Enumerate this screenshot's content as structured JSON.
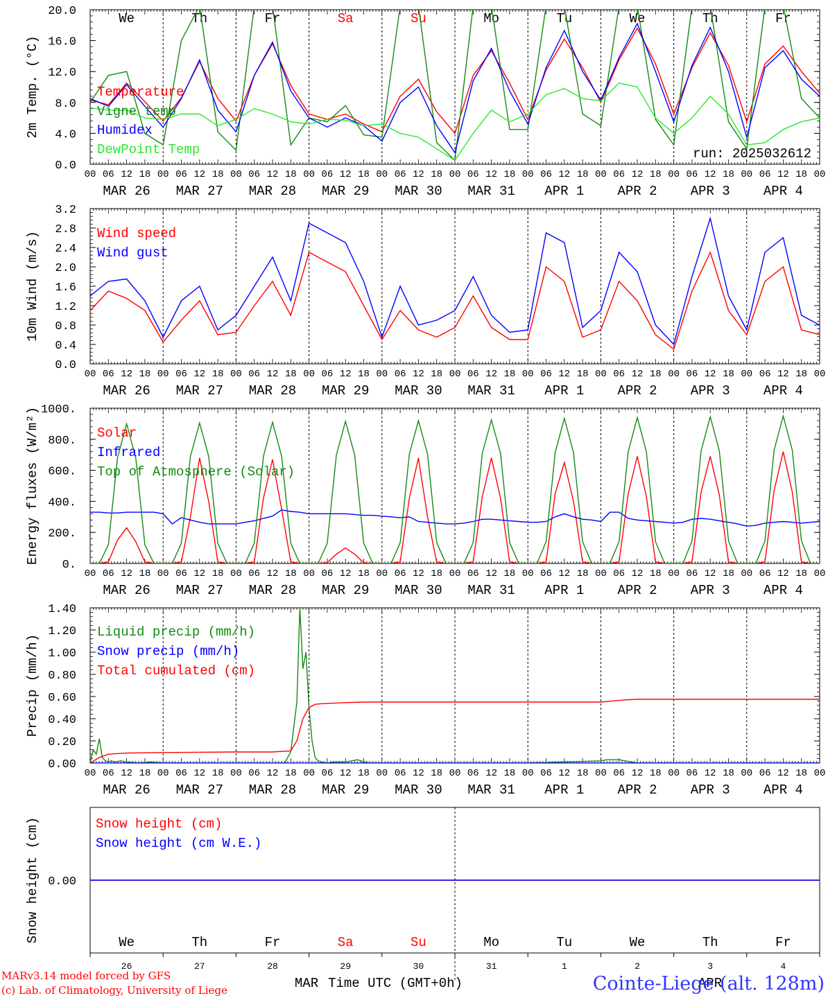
{
  "days_top": [
    {
      "label": "We",
      "color": "#000000"
    },
    {
      "label": "Th",
      "color": "#000000"
    },
    {
      "label": "Fr",
      "color": "#000000"
    },
    {
      "label": "Sa",
      "color": "#ff0000"
    },
    {
      "label": "Su",
      "color": "#ff0000"
    },
    {
      "label": "Mo",
      "color": "#000000"
    },
    {
      "label": "Tu",
      "color": "#000000"
    },
    {
      "label": "We",
      "color": "#000000"
    },
    {
      "label": "Th",
      "color": "#000000"
    },
    {
      "label": "Fr",
      "color": "#000000"
    }
  ],
  "dates": [
    "MAR 26",
    "MAR 27",
    "MAR 28",
    "MAR 29",
    "MAR 30",
    "MAR 31",
    "APR  1",
    "APR  2",
    "APR  3",
    "APR  4"
  ],
  "hour_ticks": [
    "00",
    "06",
    "12",
    "18"
  ],
  "colors": {
    "red": "#ff0000",
    "blue": "#0000ff",
    "green": "#138a13",
    "lightgreen": "#2ee62e"
  },
  "chart_data": [
    {
      "id": "temperature",
      "type": "line",
      "ylabel": "2m Temp. (°C)",
      "ylim": [
        0,
        20
      ],
      "yticks": [
        "0.0",
        "4.0",
        "8.0",
        "12.0",
        "16.0",
        "20.0"
      ],
      "ytick_values": [
        0,
        4,
        8,
        12,
        16,
        20
      ],
      "x_hours": [
        0,
        6,
        12,
        18,
        24,
        30,
        36,
        42,
        48,
        54,
        60,
        66,
        72,
        78,
        84,
        90,
        96,
        102,
        108,
        114,
        120,
        126,
        132,
        138,
        144,
        150,
        156,
        162,
        168,
        174,
        180,
        186,
        192,
        198,
        204,
        210,
        216,
        222,
        228,
        234,
        240
      ],
      "annotation": "run: 2025032612",
      "series": [
        {
          "name": "Temperature",
          "color": "#ff0000",
          "values": [
            8.3,
            7.7,
            10.5,
            8.1,
            5.6,
            8.6,
            13.3,
            8.5,
            5.6,
            11.5,
            15.6,
            10.2,
            6.5,
            5.8,
            6.5,
            5.2,
            4.2,
            8.8,
            11.0,
            6.8,
            4.0,
            11.5,
            14.7,
            10.5,
            5.8,
            12.2,
            16.2,
            12.5,
            8.0,
            13.5,
            17.6,
            13.0,
            6.5,
            12.5,
            17.0,
            12.8,
            5.5,
            13.0,
            15.3,
            12.0,
            9.2
          ]
        },
        {
          "name": "Vigne temp",
          "color": "#138a13",
          "values": [
            8.0,
            11.5,
            12.0,
            4.0,
            2.5,
            16.0,
            20.5,
            4.2,
            1.8,
            20.5,
            20.5,
            2.5,
            6.0,
            5.5,
            7.6,
            3.8,
            3.5,
            20.5,
            20.5,
            2.8,
            0.5,
            20.5,
            20.5,
            4.5,
            4.5,
            20.5,
            20.5,
            6.5,
            5.0,
            20.5,
            20.5,
            5.8,
            2.5,
            20.5,
            20.5,
            5.5,
            2.0,
            20.5,
            20.5,
            8.5,
            6.0
          ]
        },
        {
          "name": "Humidex",
          "color": "#0000ff",
          "values": [
            8.5,
            7.5,
            10.3,
            7.5,
            4.8,
            8.5,
            13.5,
            7.0,
            4.2,
            11.5,
            15.8,
            9.5,
            6.0,
            4.8,
            6.0,
            5.0,
            3.0,
            8.0,
            10.0,
            5.0,
            1.5,
            10.8,
            15.0,
            9.5,
            5.2,
            12.5,
            17.3,
            12.0,
            8.3,
            13.8,
            18.2,
            12.0,
            5.5,
            12.8,
            17.7,
            12.0,
            3.5,
            12.5,
            14.7,
            11.0,
            8.8
          ]
        },
        {
          "name": "DewPoint Temp",
          "color": "#2ee62e",
          "values": [
            7.3,
            7.0,
            7.0,
            6.0,
            5.8,
            6.5,
            6.5,
            5.0,
            5.8,
            7.2,
            6.5,
            5.5,
            5.2,
            5.8,
            5.7,
            5.0,
            5.2,
            4.0,
            3.5,
            2.0,
            0.5,
            4.0,
            7.0,
            5.5,
            6.5,
            9.0,
            9.8,
            8.5,
            8.2,
            10.5,
            10.0,
            6.0,
            4.0,
            6.0,
            8.8,
            6.5,
            2.5,
            2.8,
            4.5,
            5.5,
            6.0
          ]
        }
      ]
    },
    {
      "id": "wind",
      "type": "line",
      "ylabel": "10m Wind (m/s)",
      "ylim": [
        0,
        3.2
      ],
      "yticks": [
        "0.0",
        "0.4",
        "0.8",
        "1.2",
        "1.6",
        "2.0",
        "2.4",
        "2.8",
        "3.2"
      ],
      "ytick_values": [
        0,
        0.4,
        0.8,
        1.2,
        1.6,
        2.0,
        2.4,
        2.8,
        3.2
      ],
      "x_hours": [
        0,
        6,
        12,
        18,
        24,
        30,
        36,
        42,
        48,
        54,
        60,
        66,
        72,
        78,
        84,
        90,
        96,
        102,
        108,
        114,
        120,
        126,
        132,
        138,
        144,
        150,
        156,
        162,
        168,
        174,
        180,
        186,
        192,
        198,
        204,
        210,
        216,
        222,
        228,
        234,
        240
      ],
      "series": [
        {
          "name": "Wind speed",
          "color": "#ff0000",
          "values": [
            1.1,
            1.5,
            1.35,
            1.1,
            0.45,
            0.9,
            1.3,
            0.6,
            0.65,
            1.2,
            1.7,
            1.0,
            2.3,
            2.1,
            1.9,
            1.2,
            0.5,
            1.1,
            0.7,
            0.55,
            0.75,
            1.4,
            0.75,
            0.5,
            0.5,
            2.0,
            1.7,
            0.55,
            0.7,
            1.7,
            1.3,
            0.6,
            0.3,
            1.5,
            2.3,
            1.1,
            0.6,
            1.7,
            2.0,
            0.7,
            0.6
          ]
        },
        {
          "name": "Wind gust",
          "color": "#0000ff",
          "values": [
            1.4,
            1.7,
            1.75,
            1.3,
            0.55,
            1.3,
            1.6,
            0.7,
            1.0,
            1.6,
            2.2,
            1.3,
            2.9,
            2.7,
            2.5,
            1.7,
            0.55,
            1.6,
            0.8,
            0.9,
            1.1,
            1.8,
            1.0,
            0.65,
            0.7,
            2.7,
            2.5,
            0.75,
            1.1,
            2.3,
            1.9,
            0.8,
            0.4,
            1.8,
            3.0,
            1.4,
            0.7,
            2.3,
            2.6,
            1.0,
            0.8
          ]
        }
      ]
    },
    {
      "id": "energy",
      "type": "line",
      "ylabel": "Energy fluxes (W/m²)",
      "ylim": [
        0,
        1000
      ],
      "yticks": [
        "0.",
        "200.",
        "400.",
        "600.",
        "800.",
        "1000."
      ],
      "ytick_values": [
        0,
        200,
        400,
        600,
        800,
        1000
      ],
      "x_hours": [
        0,
        3,
        6,
        9,
        12,
        15,
        18,
        21,
        24,
        27,
        30,
        33,
        36,
        39,
        42,
        45,
        48,
        51,
        54,
        57,
        60,
        63,
        66,
        69,
        72,
        75,
        78,
        81,
        84,
        87,
        90,
        93,
        96,
        99,
        102,
        105,
        108,
        111,
        114,
        117,
        120,
        123,
        126,
        129,
        132,
        135,
        138,
        141,
        144,
        147,
        150,
        153,
        156,
        159,
        162,
        165,
        168,
        171,
        174,
        177,
        180,
        183,
        186,
        189,
        192,
        195,
        198,
        201,
        204,
        207,
        210,
        213,
        216,
        219,
        222,
        225,
        228,
        231,
        234,
        237,
        240
      ],
      "series": [
        {
          "name": "Solar",
          "color": "#ff0000",
          "values": [
            0,
            0,
            10,
            150,
            230,
            140,
            10,
            0,
            0,
            0,
            10,
            300,
            680,
            400,
            10,
            0,
            0,
            0,
            10,
            420,
            670,
            350,
            10,
            0,
            0,
            0,
            5,
            60,
            100,
            60,
            5,
            0,
            0,
            0,
            10,
            420,
            680,
            300,
            10,
            0,
            0,
            0,
            10,
            430,
            680,
            420,
            10,
            0,
            0,
            0,
            10,
            450,
            650,
            400,
            10,
            0,
            0,
            0,
            10,
            450,
            690,
            430,
            10,
            0,
            0,
            0,
            10,
            460,
            690,
            440,
            10,
            0,
            0,
            0,
            10,
            470,
            720,
            460,
            10,
            0,
            0
          ]
        },
        {
          "name": "Infrared",
          "color": "#0000ff",
          "values": [
            330,
            330,
            325,
            325,
            330,
            330,
            330,
            330,
            320,
            255,
            295,
            280,
            265,
            255,
            255,
            255,
            255,
            265,
            275,
            290,
            305,
            345,
            335,
            330,
            320,
            320,
            320,
            320,
            320,
            315,
            310,
            310,
            305,
            300,
            295,
            300,
            270,
            265,
            260,
            255,
            255,
            260,
            270,
            285,
            285,
            280,
            275,
            270,
            265,
            265,
            270,
            300,
            320,
            300,
            285,
            280,
            270,
            330,
            330,
            290,
            280,
            275,
            270,
            265,
            260,
            265,
            285,
            290,
            285,
            275,
            265,
            255,
            240,
            245,
            260,
            265,
            270,
            265,
            260,
            265,
            270
          ]
        },
        {
          "name": "Top of Atmosphere (Solar)",
          "color": "#138a13",
          "values": [
            0,
            0,
            120,
            680,
            900,
            680,
            120,
            0,
            0,
            0,
            130,
            690,
            905,
            690,
            130,
            0,
            0,
            0,
            130,
            690,
            910,
            690,
            130,
            0,
            0,
            0,
            130,
            700,
            915,
            700,
            130,
            0,
            0,
            0,
            135,
            705,
            920,
            705,
            135,
            0,
            0,
            0,
            135,
            710,
            925,
            710,
            135,
            0,
            0,
            0,
            140,
            715,
            935,
            715,
            140,
            0,
            0,
            0,
            140,
            720,
            940,
            720,
            140,
            0,
            0,
            0,
            145,
            725,
            945,
            725,
            145,
            0,
            0,
            0,
            145,
            730,
            950,
            730,
            145,
            0,
            0
          ]
        }
      ]
    },
    {
      "id": "precip",
      "type": "line",
      "ylabel": "Precip (mm/h)",
      "ylim": [
        0,
        1.4
      ],
      "yticks": [
        "0.00",
        "0.20",
        "0.40",
        "0.60",
        "0.80",
        "1.00",
        "1.20",
        "1.40"
      ],
      "ytick_values": [
        0,
        0.2,
        0.4,
        0.6,
        0.8,
        1.0,
        1.2,
        1.4
      ],
      "series": [
        {
          "name": "Liquid precip (mm/h)",
          "color": "#138a13",
          "x_hours": [
            0,
            1,
            2,
            3,
            4,
            5,
            6,
            7,
            8,
            10,
            12,
            16,
            20,
            24,
            40,
            48,
            60,
            64,
            66,
            68,
            69,
            70,
            71,
            72,
            73,
            74,
            75,
            76,
            78,
            80,
            84,
            88,
            90,
            92,
            96,
            144,
            168,
            170,
            174,
            178,
            180,
            240
          ],
          "values": [
            0,
            0.12,
            0.08,
            0.22,
            0.05,
            0.02,
            0.01,
            0.02,
            0.01,
            0.02,
            0.01,
            0,
            0.01,
            0,
            0,
            0,
            0,
            0,
            0.1,
            0.55,
            1.4,
            0.85,
            1.0,
            0.5,
            0.2,
            0.05,
            0.02,
            0.01,
            0,
            0.01,
            0.01,
            0.03,
            0.01,
            0,
            0,
            0,
            0.02,
            0.03,
            0.03,
            0.01,
            0,
            0
          ]
        },
        {
          "name": "Snow precip (mm/h)",
          "color": "#0000ff",
          "x_hours": [
            0,
            240
          ],
          "values": [
            0,
            0
          ]
        },
        {
          "name": "Total cumulated (cm)",
          "color": "#ff0000",
          "x_hours": [
            0,
            3,
            6,
            12,
            24,
            48,
            60,
            66,
            68,
            70,
            72,
            74,
            76,
            80,
            84,
            90,
            100,
            120,
            144,
            168,
            172,
            176,
            180,
            192,
            216,
            240
          ],
          "values": [
            0,
            0.05,
            0.08,
            0.09,
            0.095,
            0.1,
            0.1,
            0.11,
            0.2,
            0.4,
            0.5,
            0.53,
            0.535,
            0.54,
            0.545,
            0.55,
            0.55,
            0.55,
            0.55,
            0.55,
            0.56,
            0.57,
            0.575,
            0.575,
            0.575,
            0.575
          ]
        }
      ]
    },
    {
      "id": "snow",
      "type": "line",
      "ylabel": "Snow height (cm)",
      "yticks": [
        "0.00"
      ],
      "ytick_values": [
        0
      ],
      "x_hours": [
        0,
        240
      ],
      "series": [
        {
          "name": "Snow height (cm)",
          "color": "#ff0000",
          "values": [
            0,
            0
          ]
        },
        {
          "name": "Snow height (cm W.E.)",
          "color": "#0000ff",
          "values": [
            0,
            0
          ]
        }
      ]
    }
  ],
  "bottom_axis": {
    "day_numbers": [
      "26",
      "27",
      "28",
      "29",
      "30",
      "31",
      "1",
      "2",
      "3",
      "4"
    ],
    "month_left": "MAR",
    "month_right": "APR",
    "xlabel": "Time UTC (GMT+0h)"
  },
  "footer": {
    "model": "MARv3.14 model forced by GFS",
    "copyright": "(c) Lab. of Climatology, University of Liege",
    "station": "Cointe-Liege (alt. 128m)"
  }
}
